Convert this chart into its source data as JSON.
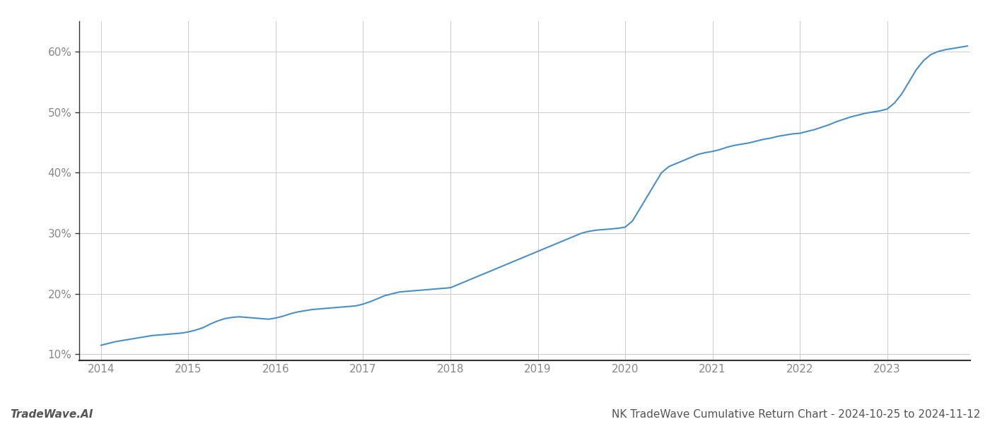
{
  "title": "NK TradeWave Cumulative Return Chart - 2024-10-25 to 2024-11-12",
  "watermark": "TradeWave.AI",
  "line_color": "#4a90c4",
  "background_color": "#ffffff",
  "grid_color": "#cccccc",
  "x_values": [
    2014.0,
    2014.083,
    2014.167,
    2014.25,
    2014.333,
    2014.417,
    2014.5,
    2014.583,
    2014.667,
    2014.75,
    2014.833,
    2014.917,
    2015.0,
    2015.083,
    2015.167,
    2015.25,
    2015.333,
    2015.417,
    2015.5,
    2015.583,
    2015.667,
    2015.75,
    2015.833,
    2015.917,
    2016.0,
    2016.083,
    2016.167,
    2016.25,
    2016.333,
    2016.417,
    2016.5,
    2016.583,
    2016.667,
    2016.75,
    2016.833,
    2016.917,
    2017.0,
    2017.083,
    2017.167,
    2017.25,
    2017.333,
    2017.417,
    2017.5,
    2017.583,
    2017.667,
    2017.75,
    2017.833,
    2017.917,
    2018.0,
    2018.083,
    2018.167,
    2018.25,
    2018.333,
    2018.417,
    2018.5,
    2018.583,
    2018.667,
    2018.75,
    2018.833,
    2018.917,
    2019.0,
    2019.083,
    2019.167,
    2019.25,
    2019.333,
    2019.417,
    2019.5,
    2019.583,
    2019.667,
    2019.75,
    2019.833,
    2019.917,
    2020.0,
    2020.083,
    2020.167,
    2020.25,
    2020.333,
    2020.417,
    2020.5,
    2020.583,
    2020.667,
    2020.75,
    2020.833,
    2020.917,
    2021.0,
    2021.083,
    2021.167,
    2021.25,
    2021.333,
    2021.417,
    2021.5,
    2021.583,
    2021.667,
    2021.75,
    2021.833,
    2021.917,
    2022.0,
    2022.083,
    2022.167,
    2022.25,
    2022.333,
    2022.417,
    2022.5,
    2022.583,
    2022.667,
    2022.75,
    2022.833,
    2022.917,
    2023.0,
    2023.083,
    2023.167,
    2023.25,
    2023.333,
    2023.417,
    2023.5,
    2023.583,
    2023.667,
    2023.75,
    2023.833,
    2023.917
  ],
  "y_values": [
    11.5,
    11.8,
    12.1,
    12.3,
    12.5,
    12.7,
    12.9,
    13.1,
    13.2,
    13.3,
    13.4,
    13.5,
    13.7,
    14.0,
    14.4,
    15.0,
    15.5,
    15.9,
    16.1,
    16.2,
    16.1,
    16.0,
    15.9,
    15.8,
    16.0,
    16.3,
    16.7,
    17.0,
    17.2,
    17.4,
    17.5,
    17.6,
    17.7,
    17.8,
    17.9,
    18.0,
    18.3,
    18.7,
    19.2,
    19.7,
    20.0,
    20.3,
    20.4,
    20.5,
    20.6,
    20.7,
    20.8,
    20.9,
    21.0,
    21.5,
    22.0,
    22.5,
    23.0,
    23.5,
    24.0,
    24.5,
    25.0,
    25.5,
    26.0,
    26.5,
    27.0,
    27.5,
    28.0,
    28.5,
    29.0,
    29.5,
    30.0,
    30.3,
    30.5,
    30.6,
    30.7,
    30.8,
    31.0,
    32.0,
    34.0,
    36.0,
    38.0,
    40.0,
    41.0,
    41.5,
    42.0,
    42.5,
    43.0,
    43.3,
    43.5,
    43.8,
    44.2,
    44.5,
    44.7,
    44.9,
    45.2,
    45.5,
    45.7,
    46.0,
    46.2,
    46.4,
    46.5,
    46.8,
    47.1,
    47.5,
    47.9,
    48.4,
    48.8,
    49.2,
    49.5,
    49.8,
    50.0,
    50.2,
    50.5,
    51.5,
    53.0,
    55.0,
    57.0,
    58.5,
    59.5,
    60.0,
    60.3,
    60.5,
    60.7,
    60.9
  ],
  "ylim": [
    9,
    65
  ],
  "xlim": [
    2013.75,
    2023.95
  ],
  "yticks": [
    10,
    20,
    30,
    40,
    50,
    60
  ],
  "xticks": [
    2014,
    2015,
    2016,
    2017,
    2018,
    2019,
    2020,
    2021,
    2022,
    2023
  ],
  "line_width": 1.5,
  "title_fontsize": 11,
  "tick_fontsize": 11,
  "watermark_fontsize": 11
}
